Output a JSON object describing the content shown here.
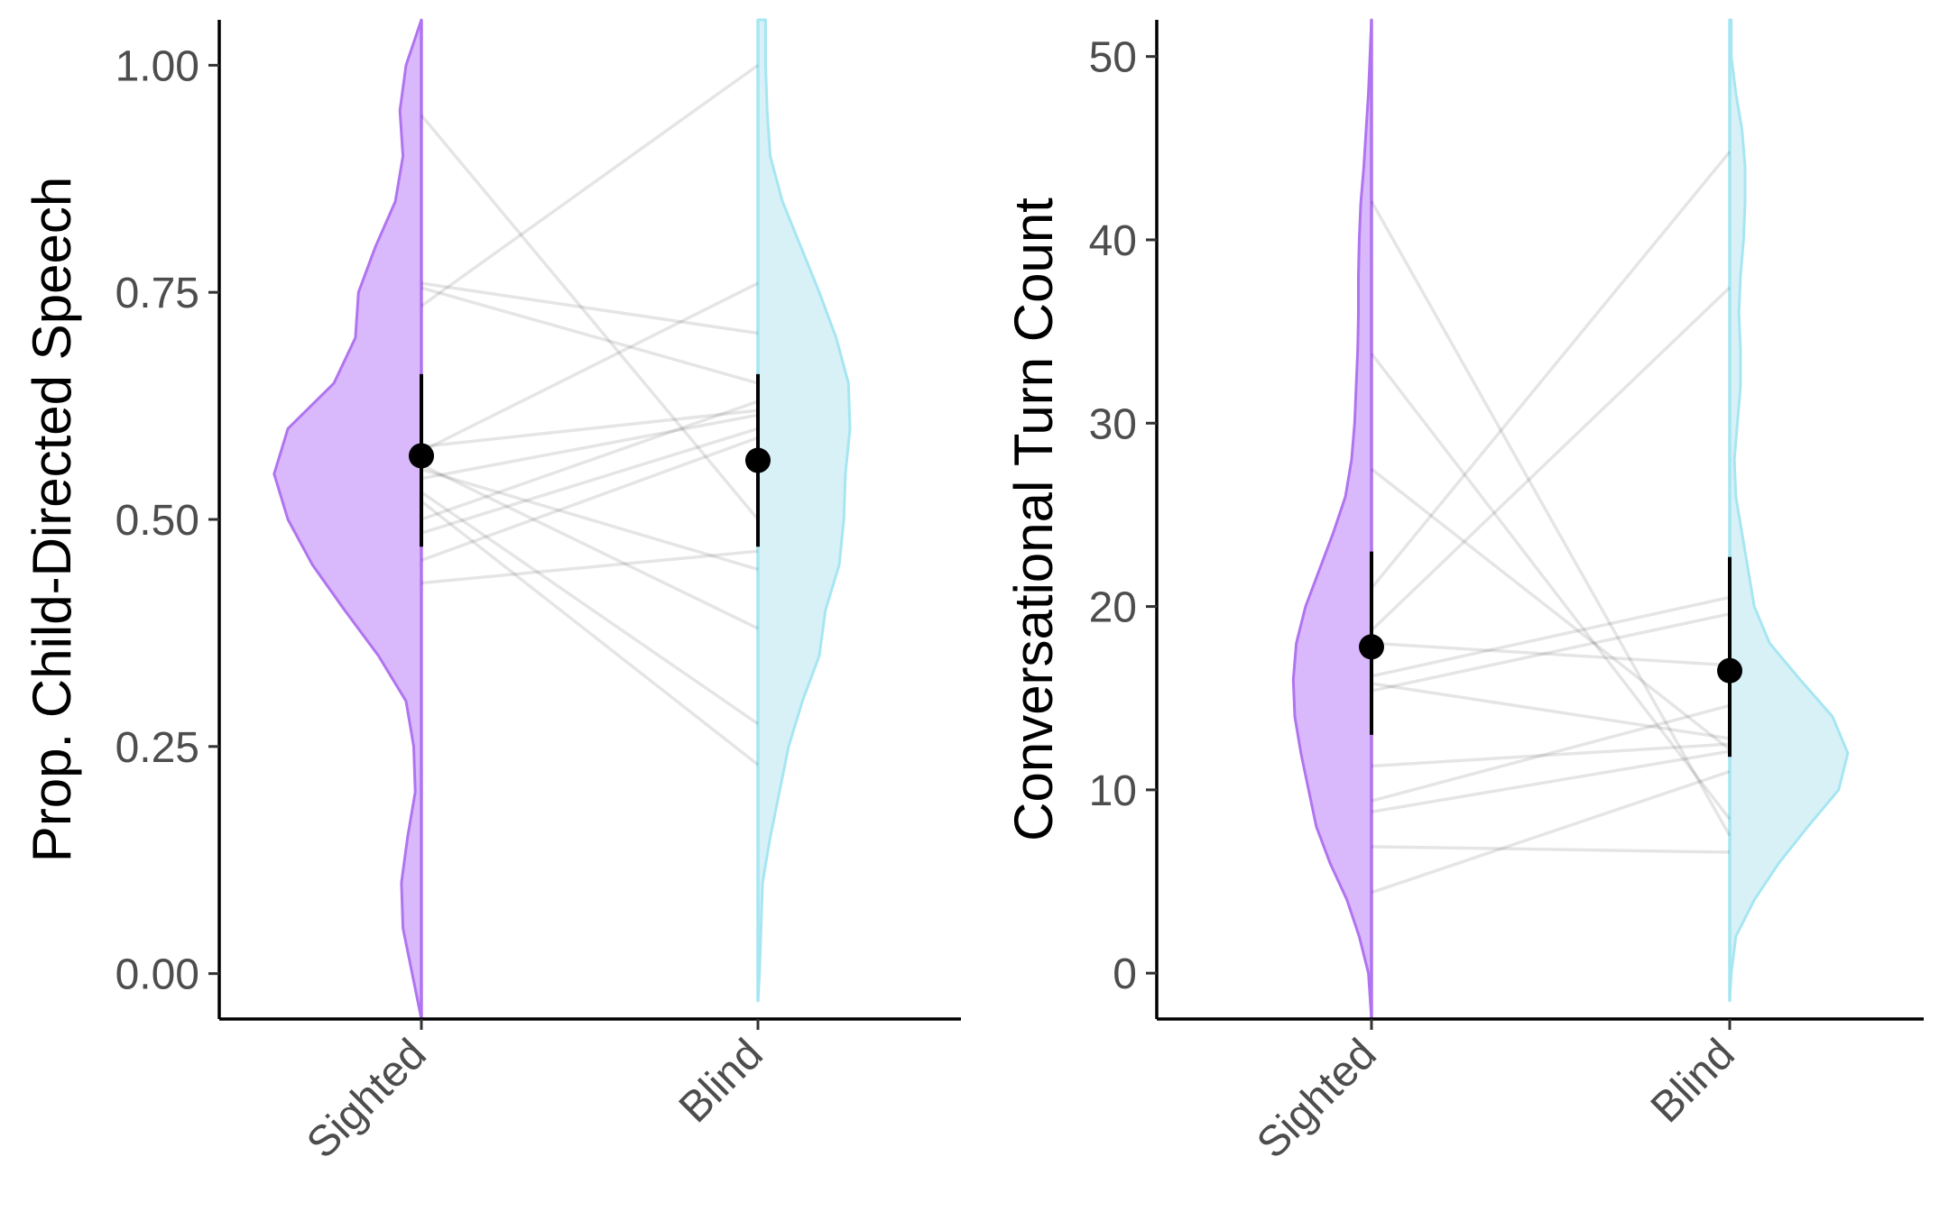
{
  "chart_data": [
    {
      "type": "violin",
      "title": "",
      "xlabel": "",
      "ylabel": "Prop. Child-Directed Speech",
      "ylim": [
        -0.05,
        1.05
      ],
      "y_ticks": [
        "0.00",
        "0.25",
        "0.50",
        "0.75",
        "1.00"
      ],
      "y_tick_values": [
        0,
        0.25,
        0.5,
        0.75,
        1.0
      ],
      "categories": [
        "Sighted",
        "Blind"
      ],
      "colors": {
        "Sighted_fill": "#d9b8fb",
        "Sighted_line": "#b074f0",
        "Blind_fill": "#d8f1f7",
        "Blind_line": "#a6e6f2"
      },
      "means": [
        0.57,
        0.565
      ],
      "error_bars": [
        [
          0.47,
          0.66
        ],
        [
          0.47,
          0.66
        ]
      ],
      "paired_lines": [
        [
          0.945,
          0.5
        ],
        [
          0.76,
          0.705
        ],
        [
          0.755,
          0.65
        ],
        [
          0.735,
          1.0
        ],
        [
          0.58,
          0.62
        ],
        [
          0.575,
          0.76
        ],
        [
          0.56,
          0.38
        ],
        [
          0.555,
          0.445
        ],
        [
          0.545,
          0.615
        ],
        [
          0.53,
          0.275
        ],
        [
          0.52,
          0.23
        ],
        [
          0.5,
          0.63
        ],
        [
          0.485,
          0.6
        ],
        [
          0.455,
          0.59
        ],
        [
          0.43,
          0.465
        ]
      ],
      "density": {
        "Sighted": [
          [
            -0.05,
            0
          ],
          [
            0.0,
            0.06
          ],
          [
            0.05,
            0.12
          ],
          [
            0.1,
            0.13
          ],
          [
            0.15,
            0.09
          ],
          [
            0.2,
            0.04
          ],
          [
            0.25,
            0.05
          ],
          [
            0.3,
            0.1
          ],
          [
            0.35,
            0.28
          ],
          [
            0.4,
            0.5
          ],
          [
            0.45,
            0.71
          ],
          [
            0.5,
            0.87
          ],
          [
            0.55,
            0.96
          ],
          [
            0.6,
            0.87
          ],
          [
            0.65,
            0.57
          ],
          [
            0.7,
            0.43
          ],
          [
            0.75,
            0.41
          ],
          [
            0.8,
            0.3
          ],
          [
            0.85,
            0.17
          ],
          [
            0.9,
            0.12
          ],
          [
            0.95,
            0.14
          ],
          [
            1.0,
            0.1
          ],
          [
            1.05,
            0.0
          ]
        ],
        "Blind": [
          [
            -0.03,
            0
          ],
          [
            0.0,
            0.01
          ],
          [
            0.05,
            0.02
          ],
          [
            0.1,
            0.03
          ],
          [
            0.15,
            0.08
          ],
          [
            0.2,
            0.14
          ],
          [
            0.25,
            0.2
          ],
          [
            0.3,
            0.29
          ],
          [
            0.35,
            0.4
          ],
          [
            0.4,
            0.44
          ],
          [
            0.45,
            0.53
          ],
          [
            0.5,
            0.56
          ],
          [
            0.55,
            0.57
          ],
          [
            0.6,
            0.6
          ],
          [
            0.65,
            0.59
          ],
          [
            0.7,
            0.51
          ],
          [
            0.75,
            0.4
          ],
          [
            0.8,
            0.28
          ],
          [
            0.85,
            0.16
          ],
          [
            0.9,
            0.08
          ],
          [
            0.95,
            0.06
          ],
          [
            1.0,
            0.05
          ],
          [
            1.05,
            0.05
          ]
        ]
      }
    },
    {
      "type": "violin",
      "title": "",
      "xlabel": "",
      "ylabel": "Conversational Turn Count",
      "ylim": [
        -2.5,
        52
      ],
      "y_ticks": [
        "0",
        "10",
        "20",
        "30",
        "40",
        "50"
      ],
      "y_tick_values": [
        0,
        10,
        20,
        30,
        40,
        50
      ],
      "categories": [
        "Sighted",
        "Blind"
      ],
      "colors": {
        "Sighted_fill": "#d9b8fb",
        "Sighted_line": "#b074f0",
        "Blind_fill": "#d8f1f7",
        "Blind_line": "#a6e6f2"
      },
      "means": [
        17.8,
        16.5
      ],
      "error_bars": [
        [
          13.0,
          23.0
        ],
        [
          11.8,
          22.7
        ]
      ],
      "paired_lines": [
        [
          42.1,
          7.5
        ],
        [
          33.8,
          8.4
        ],
        [
          27.5,
          12.2
        ],
        [
          21.0,
          44.8
        ],
        [
          18.7,
          37.4
        ],
        [
          18.0,
          16.8
        ],
        [
          16.2,
          20.5
        ],
        [
          15.8,
          12.8
        ],
        [
          15.4,
          19.6
        ],
        [
          11.3,
          12.5
        ],
        [
          9.4,
          14.6
        ],
        [
          8.8,
          12.1
        ],
        [
          6.9,
          6.6
        ],
        [
          4.4,
          11.0
        ]
      ],
      "density": {
        "Sighted": [
          [
            -2.5,
            0
          ],
          [
            0,
            0.02
          ],
          [
            2,
            0.08
          ],
          [
            4,
            0.16
          ],
          [
            6,
            0.27
          ],
          [
            8,
            0.36
          ],
          [
            10,
            0.41
          ],
          [
            12,
            0.46
          ],
          [
            14,
            0.5
          ],
          [
            16,
            0.51
          ],
          [
            18,
            0.49
          ],
          [
            20,
            0.43
          ],
          [
            22,
            0.34
          ],
          [
            24,
            0.25
          ],
          [
            26,
            0.17
          ],
          [
            28,
            0.13
          ],
          [
            30,
            0.11
          ],
          [
            32,
            0.1
          ],
          [
            34,
            0.09
          ],
          [
            36,
            0.085
          ],
          [
            38,
            0.085
          ],
          [
            40,
            0.08
          ],
          [
            42,
            0.07
          ],
          [
            44,
            0.05
          ],
          [
            46,
            0.035
          ],
          [
            48,
            0.02
          ],
          [
            50,
            0.01
          ],
          [
            52,
            0.0
          ]
        ],
        "Blind": [
          [
            -1.5,
            0
          ],
          [
            0,
            0.01
          ],
          [
            2,
            0.04
          ],
          [
            4,
            0.16
          ],
          [
            6,
            0.32
          ],
          [
            8,
            0.51
          ],
          [
            10,
            0.71
          ],
          [
            12,
            0.77
          ],
          [
            14,
            0.67
          ],
          [
            16,
            0.46
          ],
          [
            18,
            0.26
          ],
          [
            20,
            0.16
          ],
          [
            22,
            0.12
          ],
          [
            24,
            0.08
          ],
          [
            26,
            0.04
          ],
          [
            28,
            0.03
          ],
          [
            30,
            0.05
          ],
          [
            32,
            0.07
          ],
          [
            34,
            0.07
          ],
          [
            36,
            0.06
          ],
          [
            38,
            0.07
          ],
          [
            40,
            0.09
          ],
          [
            42,
            0.1
          ],
          [
            44,
            0.1
          ],
          [
            46,
            0.08
          ],
          [
            48,
            0.04
          ],
          [
            50,
            0.01
          ],
          [
            52,
            0.01
          ]
        ]
      }
    }
  ]
}
